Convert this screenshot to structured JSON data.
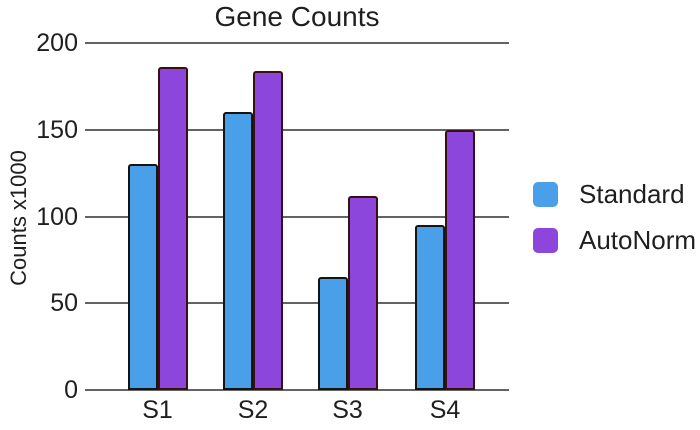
{
  "chart_data": {
    "type": "bar",
    "title": "Gene Counts",
    "xlabel": "",
    "ylabel": "Counts x1000",
    "categories": [
      "S1",
      "S2",
      "S3",
      "S4"
    ],
    "series": [
      {
        "name": "Standard",
        "color": "#4AA0E8",
        "border_color": "#141414",
        "values": [
          130,
          160,
          65,
          95
        ]
      },
      {
        "name": "AutoNorm",
        "color": "#8D46DC",
        "border_color": "#38100e",
        "values": [
          186,
          184,
          112,
          150
        ]
      }
    ],
    "ylim": [
      0,
      200
    ],
    "yticks": [
      0,
      50,
      100,
      150,
      200
    ],
    "grid": true,
    "gridline_color": "#636363",
    "legend_position": "right",
    "text_color": "#1f1f1f",
    "background_color": "#ffffff"
  }
}
